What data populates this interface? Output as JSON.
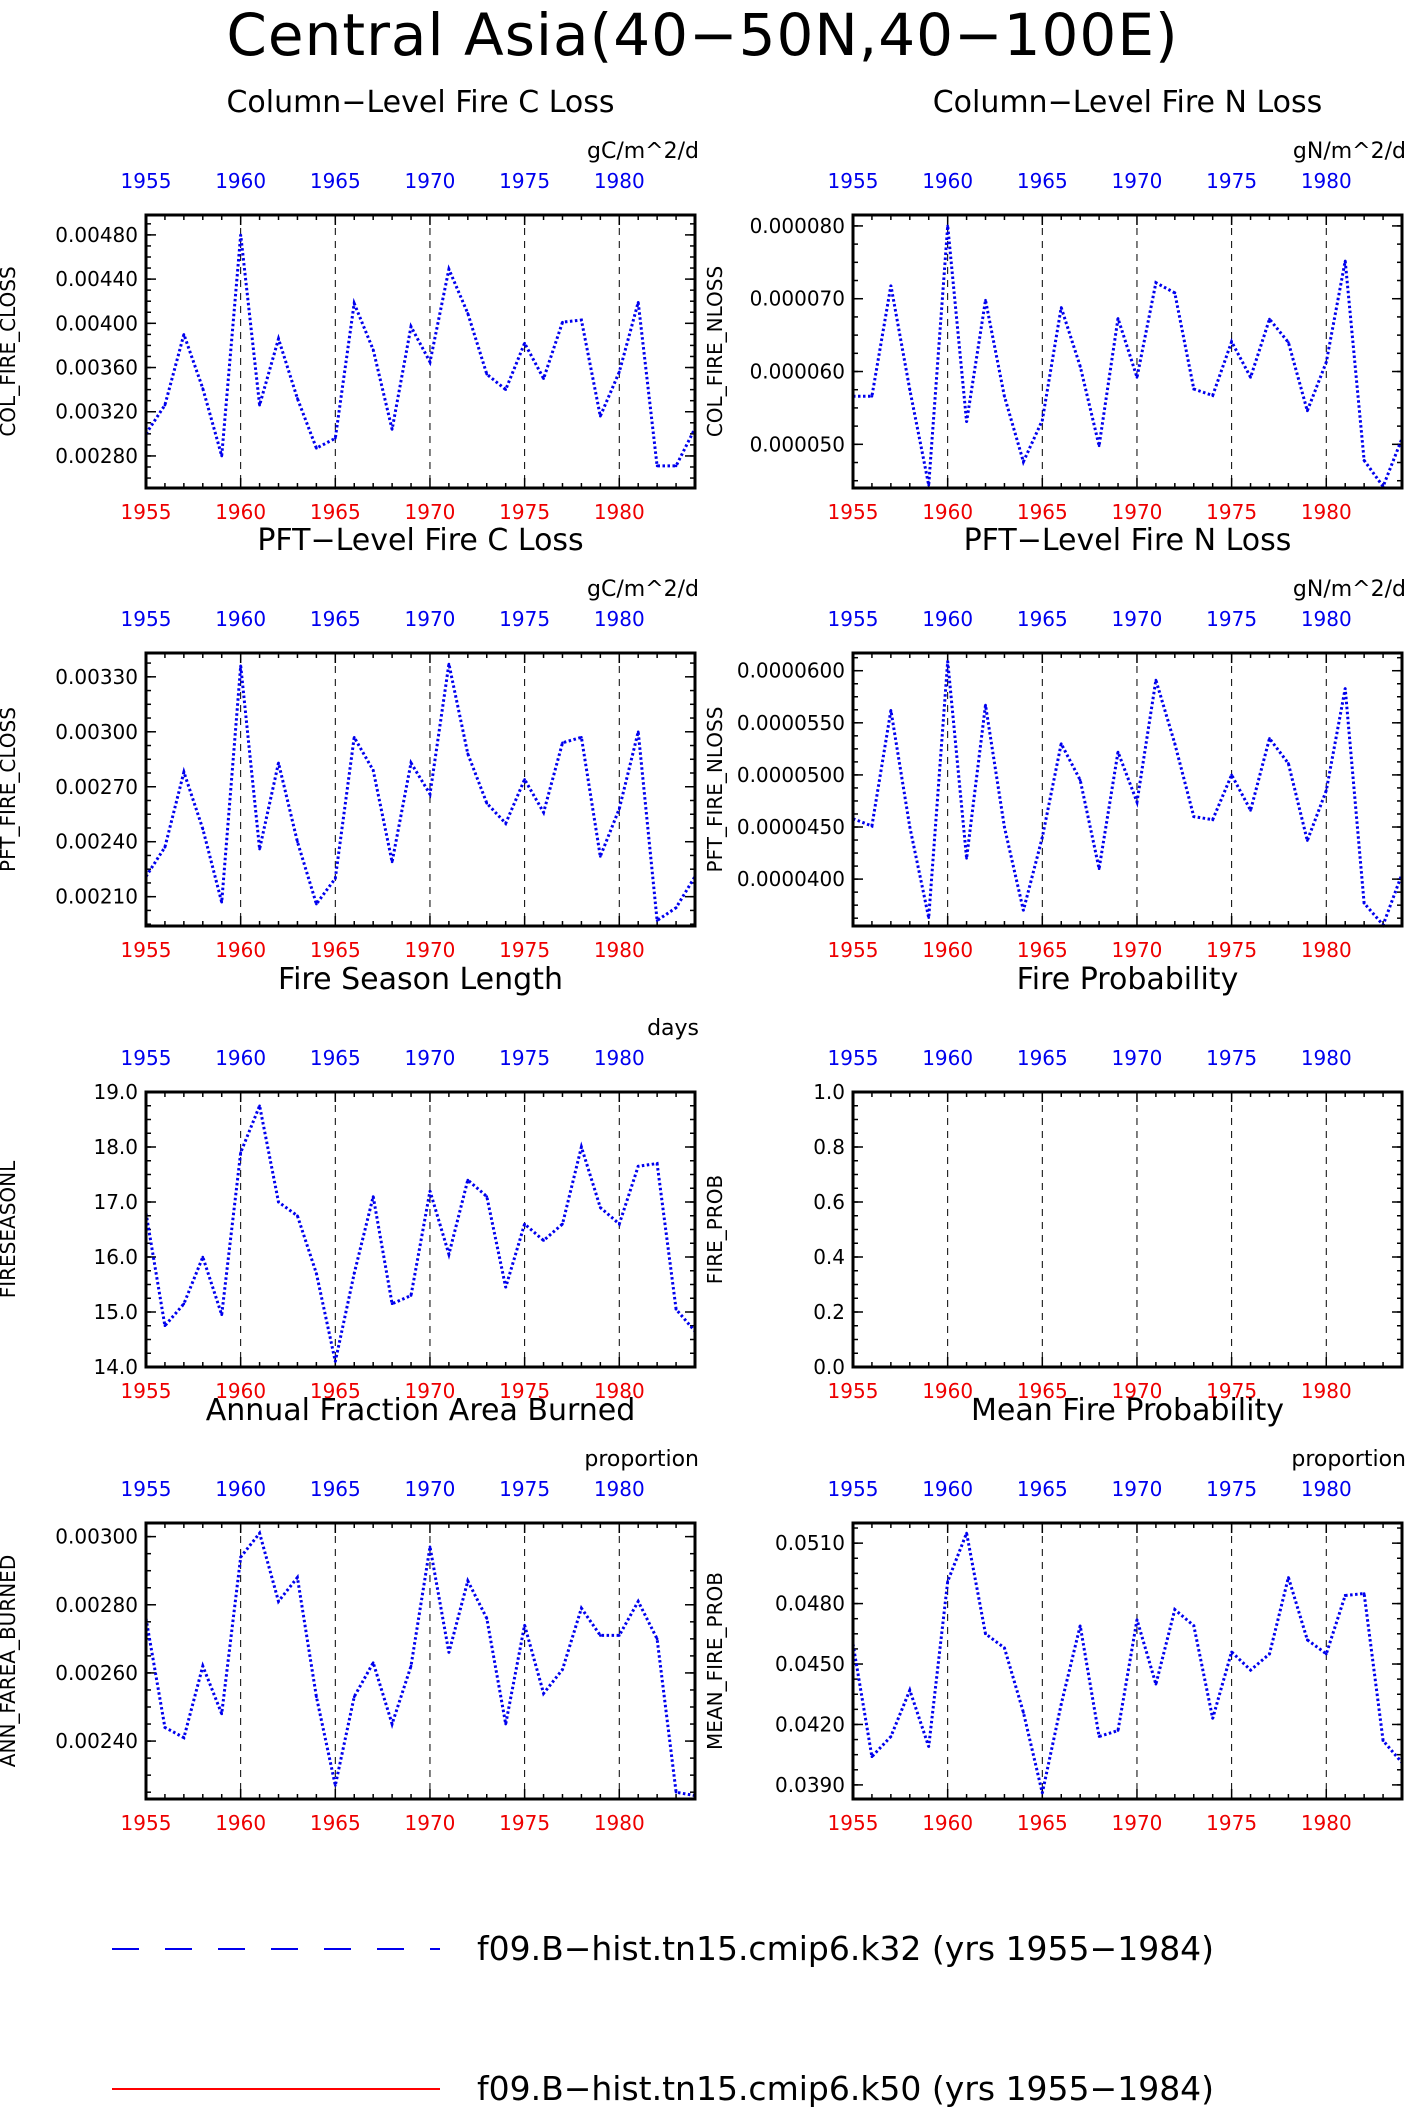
{
  "title": "Central Asia(40−50N,40−100E)",
  "colors": {
    "top_axis": "#0000ee",
    "bottom_axis": "#ee0000",
    "series": "#0000ee",
    "legend_red": "#ff0000"
  },
  "chart_data": [
    {
      "type": "line",
      "title": "Column−Level Fire C Loss",
      "units": "gC/m^2/d",
      "ylabel": "COL_FIRE_CLOSS",
      "x": [
        1955,
        1956,
        1957,
        1958,
        1959,
        1960,
        1961,
        1962,
        1963,
        1964,
        1965,
        1966,
        1967,
        1968,
        1969,
        1970,
        1971,
        1972,
        1973,
        1974,
        1975,
        1976,
        1977,
        1978,
        1979,
        1980,
        1981,
        1982,
        1983,
        1984
      ],
      "values": [
        0.003,
        0.00326,
        0.0039,
        0.00341,
        0.0028,
        0.0048,
        0.00326,
        0.00386,
        0.00332,
        0.00287,
        0.00296,
        0.00418,
        0.00376,
        0.00304,
        0.00397,
        0.00365,
        0.00449,
        0.00409,
        0.00354,
        0.0034,
        0.00382,
        0.0035,
        0.00401,
        0.00403,
        0.00316,
        0.00356,
        0.00419,
        0.00271,
        0.00271,
        0.00305
      ],
      "ylim": [
        0.00251,
        0.00498
      ],
      "yticks": [
        0.0028,
        0.0032,
        0.0036,
        0.004,
        0.0044,
        0.0048
      ],
      "ytick_labels": [
        "0.00280",
        "0.00320",
        "0.00360",
        "0.00400",
        "0.00440",
        "0.00480"
      ],
      "xlim": [
        1955,
        1984
      ],
      "xticks": [
        1955,
        1960,
        1965,
        1970,
        1975,
        1980
      ],
      "xtick_labels": [
        "1955",
        "1960",
        "1965",
        "1970",
        "1975",
        "1980"
      ],
      "grid_years": [
        1960,
        1965,
        1970,
        1975,
        1980
      ]
    },
    {
      "type": "line",
      "title": "Column−Level Fire N Loss",
      "units": "gN/m^2/d",
      "ylabel": "COL_FIRE_NLOSS",
      "x": [
        1955,
        1956,
        1957,
        1958,
        1959,
        1960,
        1961,
        1962,
        1963,
        1964,
        1965,
        1966,
        1967,
        1968,
        1969,
        1970,
        1971,
        1972,
        1973,
        1974,
        1975,
        1976,
        1977,
        1978,
        1979,
        1980,
        1981,
        1982,
        1983,
        1984
      ],
      "values": [
        5.66e-05,
        5.66e-05,
        7.18e-05,
        5.75e-05,
        4.44e-05,
        8e-05,
        5.31e-05,
        6.98e-05,
        5.66e-05,
        4.76e-05,
        5.33e-05,
        6.88e-05,
        6.07e-05,
        4.98e-05,
        6.73e-05,
        5.92e-05,
        7.22e-05,
        7.08e-05,
        5.76e-05,
        5.67e-05,
        6.41e-05,
        5.92e-05,
        6.72e-05,
        6.4e-05,
        5.46e-05,
        6.13e-05,
        7.52e-05,
        4.78e-05,
        4.42e-05,
        5.08e-05
      ],
      "ylim": [
        4.4e-05,
        8.15e-05
      ],
      "yticks": [
        5e-05,
        6e-05,
        7e-05,
        8e-05
      ],
      "ytick_labels": [
        "0.000050",
        "0.000060",
        "0.000070",
        "0.000080"
      ],
      "xlim": [
        1955,
        1984
      ],
      "xticks": [
        1955,
        1960,
        1965,
        1970,
        1975,
        1980
      ],
      "xtick_labels": [
        "1955",
        "1960",
        "1965",
        "1970",
        "1975",
        "1980"
      ],
      "grid_years": [
        1960,
        1965,
        1970,
        1975,
        1980
      ]
    },
    {
      "type": "line",
      "title": "PFT−Level Fire C Loss",
      "units": "gC/m^2/d",
      "ylabel": "PFT_FIRE_CLOSS",
      "x": [
        1955,
        1956,
        1957,
        1958,
        1959,
        1960,
        1961,
        1962,
        1963,
        1964,
        1965,
        1966,
        1967,
        1968,
        1969,
        1970,
        1971,
        1972,
        1973,
        1974,
        1975,
        1976,
        1977,
        1978,
        1979,
        1980,
        1981,
        1982,
        1983,
        1984
      ],
      "values": [
        0.00221,
        0.00237,
        0.00278,
        0.00247,
        0.00207,
        0.00336,
        0.00236,
        0.00283,
        0.0024,
        0.00206,
        0.0022,
        0.00297,
        0.00279,
        0.00229,
        0.00283,
        0.00266,
        0.00337,
        0.00288,
        0.00261,
        0.0025,
        0.00274,
        0.00256,
        0.00294,
        0.00297,
        0.00232,
        0.00258,
        0.003,
        0.00197,
        0.00204,
        0.00221
      ],
      "ylim": [
        0.00194,
        0.00343
      ],
      "yticks": [
        0.0021,
        0.0024,
        0.0027,
        0.003,
        0.0033
      ],
      "ytick_labels": [
        "0.00210",
        "0.00240",
        "0.00270",
        "0.00300",
        "0.00330"
      ],
      "xlim": [
        1955,
        1984
      ],
      "xticks": [
        1955,
        1960,
        1965,
        1970,
        1975,
        1980
      ],
      "xtick_labels": [
        "1955",
        "1960",
        "1965",
        "1970",
        "1975",
        "1980"
      ],
      "grid_years": [
        1960,
        1965,
        1970,
        1975,
        1980
      ]
    },
    {
      "type": "line",
      "title": "PFT−Level Fire N Loss",
      "units": "gN/m^2/d",
      "ylabel": "PFT_FIRE_NLOSS",
      "x": [
        1955,
        1956,
        1957,
        1958,
        1959,
        1960,
        1961,
        1962,
        1963,
        1964,
        1965,
        1966,
        1967,
        1968,
        1969,
        1970,
        1971,
        1972,
        1973,
        1974,
        1975,
        1976,
        1977,
        1978,
        1979,
        1980,
        1981,
        1982,
        1983,
        1984
      ],
      "values": [
        4.58e-05,
        4.51e-05,
        5.62e-05,
        4.5e-05,
        3.63e-05,
        6.09e-05,
        4.2e-05,
        5.67e-05,
        4.5e-05,
        3.7e-05,
        4.4e-05,
        5.3e-05,
        4.95e-05,
        4.1e-05,
        5.22e-05,
        4.74e-05,
        5.91e-05,
        5.3e-05,
        4.6e-05,
        4.57e-05,
        5e-05,
        4.66e-05,
        5.35e-05,
        5.11e-05,
        4.37e-05,
        4.85e-05,
        5.83e-05,
        3.77e-05,
        3.56e-05,
        4.05e-05
      ],
      "ylim": [
        3.55e-05,
        6.17e-05
      ],
      "yticks": [
        4e-05,
        4.5e-05,
        5e-05,
        5.5e-05,
        6e-05
      ],
      "ytick_labels": [
        "0.0000400",
        "0.0000450",
        "0.0000500",
        "0.0000550",
        "0.0000600"
      ],
      "xlim": [
        1955,
        1984
      ],
      "xticks": [
        1955,
        1960,
        1965,
        1970,
        1975,
        1980
      ],
      "xtick_labels": [
        "1955",
        "1960",
        "1965",
        "1970",
        "1975",
        "1980"
      ],
      "grid_years": [
        1960,
        1965,
        1970,
        1975,
        1980
      ]
    },
    {
      "type": "line",
      "title": "Fire Season Length",
      "units": "days",
      "ylabel": "FIRESEASONL",
      "x": [
        1955,
        1956,
        1957,
        1958,
        1959,
        1960,
        1961,
        1962,
        1963,
        1964,
        1965,
        1966,
        1967,
        1968,
        1969,
        1970,
        1971,
        1972,
        1973,
        1974,
        1975,
        1976,
        1977,
        1978,
        1979,
        1980,
        1981,
        1982,
        1983,
        1984
      ],
      "values": [
        16.8,
        14.75,
        15.15,
        16.0,
        14.95,
        17.9,
        18.75,
        17.0,
        16.75,
        15.7,
        14.1,
        15.7,
        17.1,
        15.15,
        15.3,
        17.2,
        16.05,
        17.4,
        17.1,
        15.45,
        16.6,
        16.3,
        16.6,
        18.0,
        16.9,
        16.6,
        17.65,
        17.7,
        15.05,
        14.65
      ],
      "ylim": [
        14.0,
        19.0
      ],
      "yticks": [
        14.0,
        15.0,
        16.0,
        17.0,
        18.0,
        19.0
      ],
      "ytick_labels": [
        "14.0",
        "15.0",
        "16.0",
        "17.0",
        "18.0",
        "19.0"
      ],
      "xlim": [
        1955,
        1984
      ],
      "xticks": [
        1955,
        1960,
        1965,
        1970,
        1975,
        1980
      ],
      "xtick_labels": [
        "1955",
        "1960",
        "1965",
        "1970",
        "1975",
        "1980"
      ],
      "grid_years": [
        1960,
        1965,
        1970,
        1975,
        1980
      ]
    },
    {
      "type": "line",
      "title": "Fire Probability",
      "units": "",
      "ylabel": "FIRE_PROB",
      "x": [],
      "values": [],
      "ylim": [
        0.0,
        1.0
      ],
      "yticks": [
        0.0,
        0.2,
        0.4,
        0.6,
        0.8,
        1.0
      ],
      "ytick_labels": [
        "0.0",
        "0.2",
        "0.4",
        "0.6",
        "0.8",
        "1.0"
      ],
      "xlim": [
        1955,
        1984
      ],
      "xticks": [
        1955,
        1960,
        1965,
        1970,
        1975,
        1980
      ],
      "xtick_labels": [
        "1955",
        "1960",
        "1965",
        "1970",
        "1975",
        "1980"
      ],
      "grid_years": [
        1960,
        1965,
        1970,
        1975,
        1980
      ]
    },
    {
      "type": "line",
      "title": "Annual Fraction Area Burned",
      "units": "proportion",
      "ylabel": "ANN_FAREA_BURNED",
      "x": [
        1955,
        1956,
        1957,
        1958,
        1959,
        1960,
        1961,
        1962,
        1963,
        1964,
        1965,
        1966,
        1967,
        1968,
        1969,
        1970,
        1971,
        1972,
        1973,
        1974,
        1975,
        1976,
        1977,
        1978,
        1979,
        1980,
        1981,
        1982,
        1983,
        1984
      ],
      "values": [
        0.00276,
        0.00244,
        0.00241,
        0.00262,
        0.00248,
        0.00294,
        0.00301,
        0.00281,
        0.00288,
        0.00253,
        0.00227,
        0.00253,
        0.00263,
        0.00245,
        0.00262,
        0.00297,
        0.00266,
        0.00287,
        0.00276,
        0.00245,
        0.00274,
        0.00254,
        0.00261,
        0.00279,
        0.00271,
        0.00271,
        0.00281,
        0.0027,
        0.00225,
        0.00224
      ],
      "ylim": [
        0.00223,
        0.00304
      ],
      "yticks": [
        0.0024,
        0.0026,
        0.0028,
        0.003
      ],
      "ytick_labels": [
        "0.00240",
        "0.00260",
        "0.00280",
        "0.00300"
      ],
      "xlim": [
        1955,
        1984
      ],
      "xticks": [
        1955,
        1960,
        1965,
        1970,
        1975,
        1980
      ],
      "xtick_labels": [
        "1955",
        "1960",
        "1965",
        "1970",
        "1975",
        "1980"
      ],
      "grid_years": [
        1960,
        1965,
        1970,
        1975,
        1980
      ]
    },
    {
      "type": "line",
      "title": "Mean Fire Probability",
      "units": "proportion",
      "ylabel": "MEAN_FIRE_PROB",
      "x": [
        1955,
        1956,
        1957,
        1958,
        1959,
        1960,
        1961,
        1962,
        1963,
        1964,
        1965,
        1966,
        1967,
        1968,
        1969,
        1970,
        1971,
        1972,
        1973,
        1974,
        1975,
        1976,
        1977,
        1978,
        1979,
        1980,
        1981,
        1982,
        1983,
        1984
      ],
      "values": [
        0.046,
        0.0404,
        0.0414,
        0.0437,
        0.0409,
        0.0491,
        0.0515,
        0.0465,
        0.0458,
        0.0426,
        0.0386,
        0.043,
        0.0469,
        0.0414,
        0.0417,
        0.0472,
        0.044,
        0.0477,
        0.0469,
        0.0423,
        0.0456,
        0.0447,
        0.0455,
        0.0493,
        0.0462,
        0.0455,
        0.0484,
        0.0485,
        0.0412,
        0.0401
      ],
      "ylim": [
        0.0383,
        0.052
      ],
      "yticks": [
        0.039,
        0.042,
        0.045,
        0.048,
        0.051
      ],
      "ytick_labels": [
        "0.0390",
        "0.0420",
        "0.0450",
        "0.0480",
        "0.0510"
      ],
      "xlim": [
        1955,
        1984
      ],
      "xticks": [
        1955,
        1960,
        1965,
        1970,
        1975,
        1980
      ],
      "xtick_labels": [
        "1955",
        "1960",
        "1965",
        "1970",
        "1975",
        "1980"
      ],
      "grid_years": [
        1960,
        1965,
        1970,
        1975,
        1980
      ]
    }
  ],
  "legend": [
    {
      "label": "f09.B−hist.tn15.cmip6.k32 (yrs 1955−1984)",
      "style": "dashed",
      "color": "#0000ee"
    },
    {
      "label": "f09.B−hist.tn15.cmip6.k50 (yrs 1955−1984)",
      "style": "solid",
      "color": "#ff0000"
    }
  ]
}
